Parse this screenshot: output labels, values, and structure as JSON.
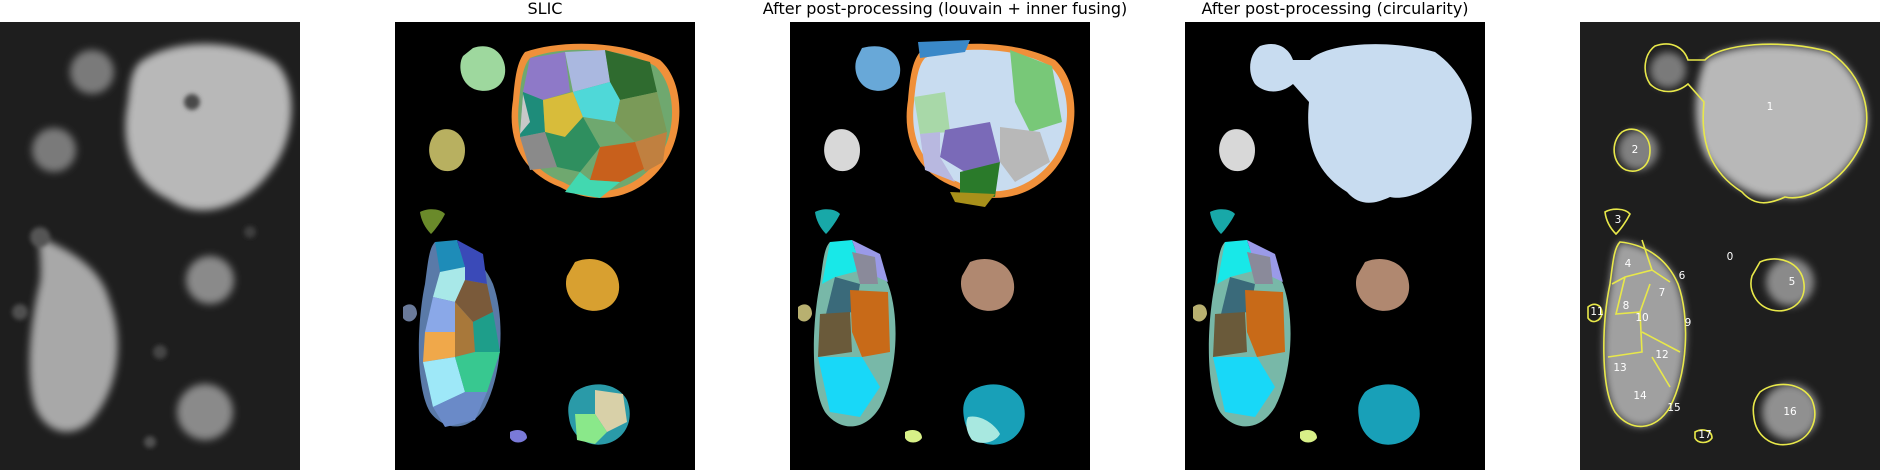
{
  "panels": [
    {
      "title": ""
    },
    {
      "title": "SLIC"
    },
    {
      "title": "After post-processing (louvain + inner fusing)"
    },
    {
      "title": "After post-processing (circularity)"
    },
    {
      "title": ""
    }
  ],
  "segment_labels": [
    "0",
    "1",
    "2",
    "3",
    "4",
    "5",
    "6",
    "7",
    "8",
    "9",
    "10",
    "11",
    "12",
    "13",
    "14",
    "15",
    "16",
    "17"
  ],
  "colors": {
    "background": "#000000",
    "contour": "#e8e84a",
    "label_text": "#ffffff"
  }
}
